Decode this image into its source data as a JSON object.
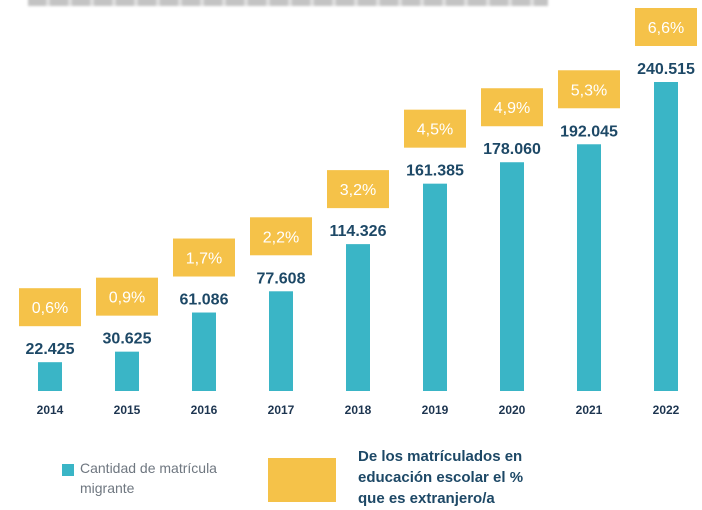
{
  "chart_data": {
    "type": "bar",
    "title": "",
    "xlabel": "",
    "ylabel": "",
    "categories": [
      "2014",
      "2015",
      "2016",
      "2017",
      "2018",
      "2019",
      "2020",
      "2021",
      "2022"
    ],
    "series": [
      {
        "name": "Cantidad de matrícula migrante",
        "values": [
          22425,
          30625,
          61086,
          77608,
          114326,
          161385,
          178060,
          192045,
          240515
        ],
        "labels": [
          "22.425",
          "30.625",
          "61.086",
          "77.608",
          "114.326",
          "161.385",
          "178.060",
          "192.045",
          "240.515"
        ]
      },
      {
        "name": "De los matrículados en educación escolar el % que es extranjero/a",
        "values": [
          0.6,
          0.9,
          1.7,
          2.2,
          3.2,
          4.5,
          4.9,
          5.3,
          6.6
        ],
        "labels": [
          "0,6%",
          "0,9%",
          "1,7%",
          "2,2%",
          "3,2%",
          "4,5%",
          "4,9%",
          "5,3%",
          "6,6%"
        ]
      }
    ],
    "ylim": [
      0,
      240515
    ],
    "grid": false,
    "legend_position": "bottom"
  },
  "colors": {
    "bar": "#3ab5c6",
    "percent_box": "#f5c249",
    "value_text": "#1d4866",
    "percent_text": "#ffffff",
    "year_text": "#1d3550"
  },
  "legend": {
    "bar_label": "Cantidad de matrícula\nmigrante",
    "percent_label": "De los matrículados en\neducación escolar el %\nque es extranjero/a"
  }
}
